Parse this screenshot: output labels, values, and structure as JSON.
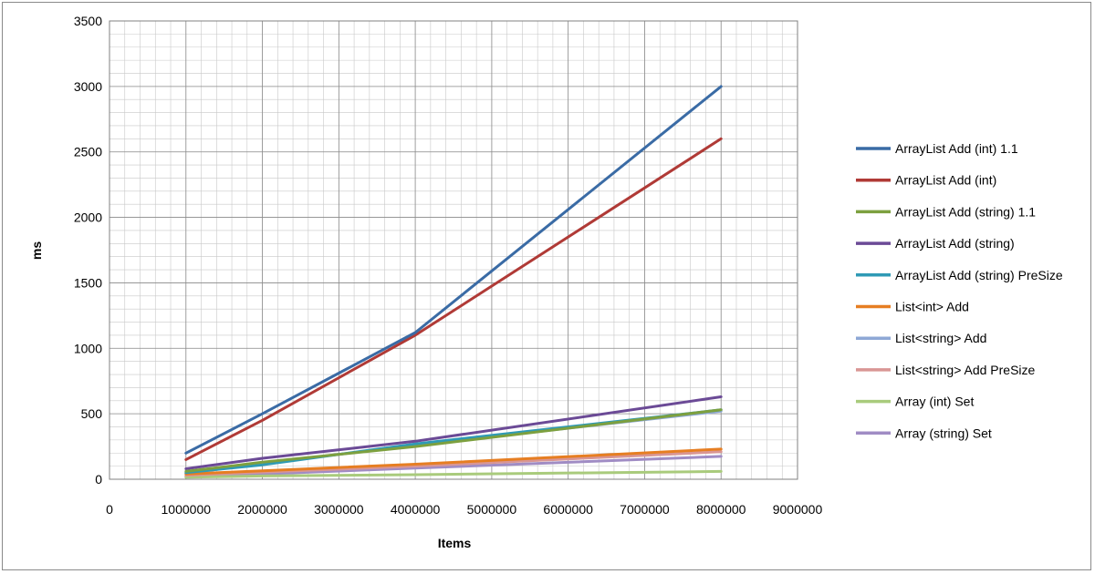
{
  "chart_data": {
    "type": "line",
    "title": "",
    "xlabel": "Items",
    "ylabel": "ms",
    "xlim": [
      0,
      9000000
    ],
    "ylim": [
      0,
      3500
    ],
    "x_ticks": [
      "0",
      "1000000",
      "2000000",
      "3000000",
      "4000000",
      "5000000",
      "6000000",
      "7000000",
      "8000000",
      "9000000"
    ],
    "y_ticks": [
      "0",
      "500",
      "1000",
      "1500",
      "2000",
      "2500",
      "3000",
      "3500"
    ],
    "grid": true,
    "legend_position": "right",
    "x": [
      1000000,
      2000000,
      4000000,
      8000000
    ],
    "series": [
      {
        "name": "ArrayList Add (int) 1.1",
        "color": "#3A6BA5",
        "values": [
          200,
          500,
          1120,
          3000
        ]
      },
      {
        "name": "ArrayList Add (int)",
        "color": "#B03A36",
        "values": [
          150,
          450,
          1100,
          2600
        ]
      },
      {
        "name": "ArrayList Add (string) 1.1",
        "color": "#7DA03F",
        "values": [
          60,
          130,
          250,
          530
        ]
      },
      {
        "name": "ArrayList Add (string)",
        "color": "#6B4A96",
        "values": [
          80,
          160,
          290,
          630
        ]
      },
      {
        "name": "ArrayList Add (string) PreSize",
        "color": "#2F9AB5",
        "values": [
          50,
          110,
          270,
          530
        ]
      },
      {
        "name": "List<int> Add",
        "color": "#E67E22",
        "values": [
          40,
          65,
          115,
          230
        ]
      },
      {
        "name": "List<string> Add",
        "color": "#8EA8D6",
        "values": [
          45,
          120,
          260,
          520
        ]
      },
      {
        "name": "List<string> Add PreSize",
        "color": "#D99694",
        "values": [
          30,
          55,
          100,
          210
        ]
      },
      {
        "name": "Array (int) Set",
        "color": "#A9CB7C",
        "values": [
          15,
          25,
          35,
          60
        ]
      },
      {
        "name": "Array (string) Set",
        "color": "#A08CC4",
        "values": [
          20,
          40,
          85,
          175
        ]
      }
    ]
  }
}
